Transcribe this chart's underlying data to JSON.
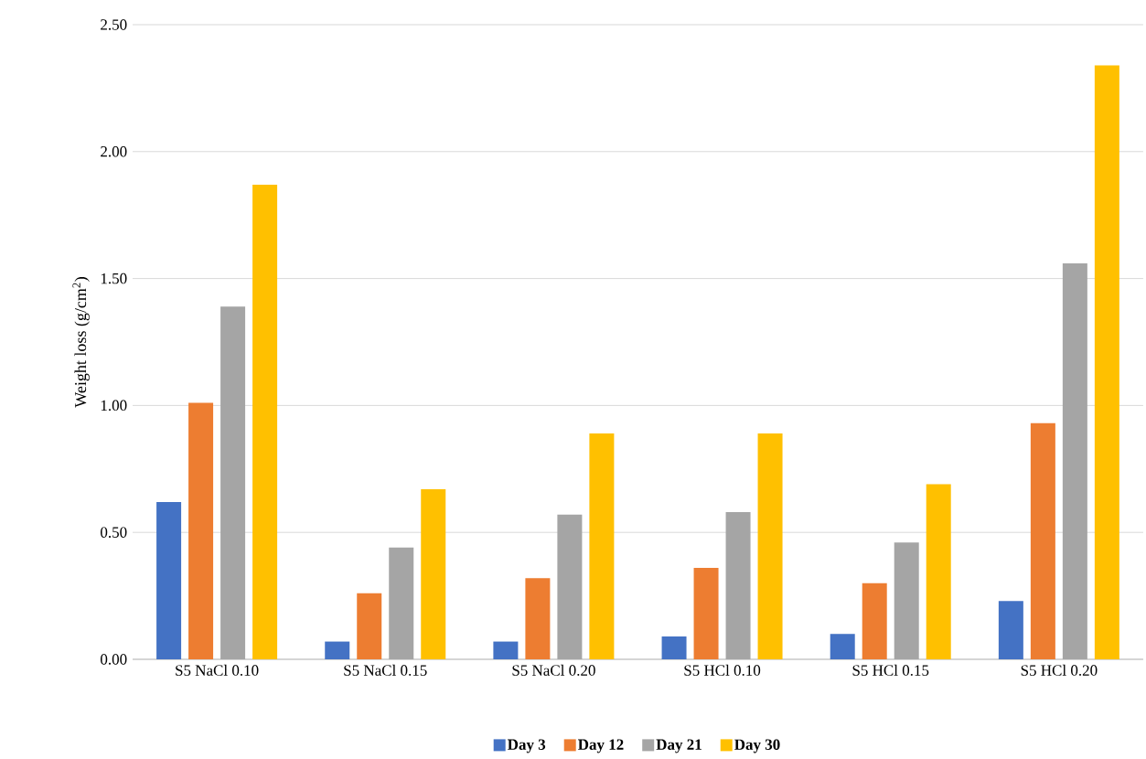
{
  "chart_data": {
    "type": "bar",
    "ylabel": "Weight loss (g/cm$^{2}$)",
    "categories": [
      "S5 NaCl 0.10",
      "S5 NaCl 0.15",
      "S5 NaCl 0.20",
      "S5 HCl 0.10",
      "S5 HCl 0.15",
      "S5 HCl 0.20"
    ],
    "series": [
      {
        "name": "Day 3",
        "color": "#4472c4",
        "values": [
          0.62,
          0.07,
          0.07,
          0.09,
          0.1,
          0.23
        ]
      },
      {
        "name": "Day 12",
        "color": "#ed7d31",
        "values": [
          1.01,
          0.26,
          0.32,
          0.36,
          0.3,
          0.93
        ]
      },
      {
        "name": "Day 21",
        "color": "#a5a5a5",
        "values": [
          1.39,
          0.44,
          0.57,
          0.58,
          0.46,
          1.56
        ]
      },
      {
        "name": "Day 30",
        "color": "#ffc000",
        "values": [
          1.87,
          0.67,
          0.89,
          0.89,
          0.69,
          2.34
        ]
      }
    ],
    "ylim": [
      0,
      2.5
    ],
    "yticks": [
      {
        "value": 0,
        "label": "0.00"
      },
      {
        "value": 0.5,
        "label": "0.50"
      },
      {
        "value": 1,
        "label": "1.00"
      },
      {
        "value": 1.5,
        "label": "1.50"
      },
      {
        "value": 2,
        "label": "2.00"
      },
      {
        "value": 2.5,
        "label": "2.50"
      }
    ],
    "grid": "y",
    "legend": "bottom"
  }
}
